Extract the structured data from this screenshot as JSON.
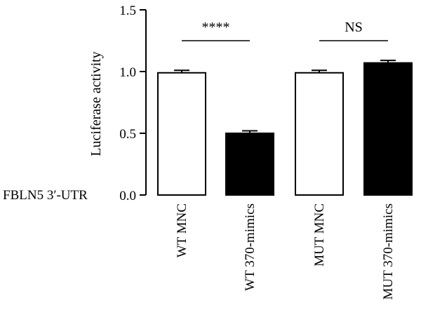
{
  "chart_data": {
    "type": "bar",
    "row_label": "FBLN5 3′-UTR",
    "ylabel": "Luciferase activity",
    "xlabel": "",
    "ylim": [
      0,
      1.5
    ],
    "yticks": [
      0.0,
      0.5,
      1.0,
      1.5
    ],
    "ytick_labels": [
      "0.0",
      "0.5",
      "1.0",
      "1.5"
    ],
    "categories": [
      "WT MNC",
      "WT 370-mimics",
      "MUT MNC",
      "MUT 370-mimics"
    ],
    "values": [
      0.99,
      0.5,
      0.99,
      1.07
    ],
    "errors": [
      0.02,
      0.02,
      0.02,
      0.02
    ],
    "bar_fill": [
      "#ffffff",
      "#000000",
      "#ffffff",
      "#000000"
    ],
    "comparisons": [
      {
        "from": 0,
        "to": 1,
        "label": "****",
        "y": 1.25
      },
      {
        "from": 2,
        "to": 3,
        "label": "NS",
        "y": 1.25
      }
    ],
    "grid": false,
    "legend": "none"
  }
}
